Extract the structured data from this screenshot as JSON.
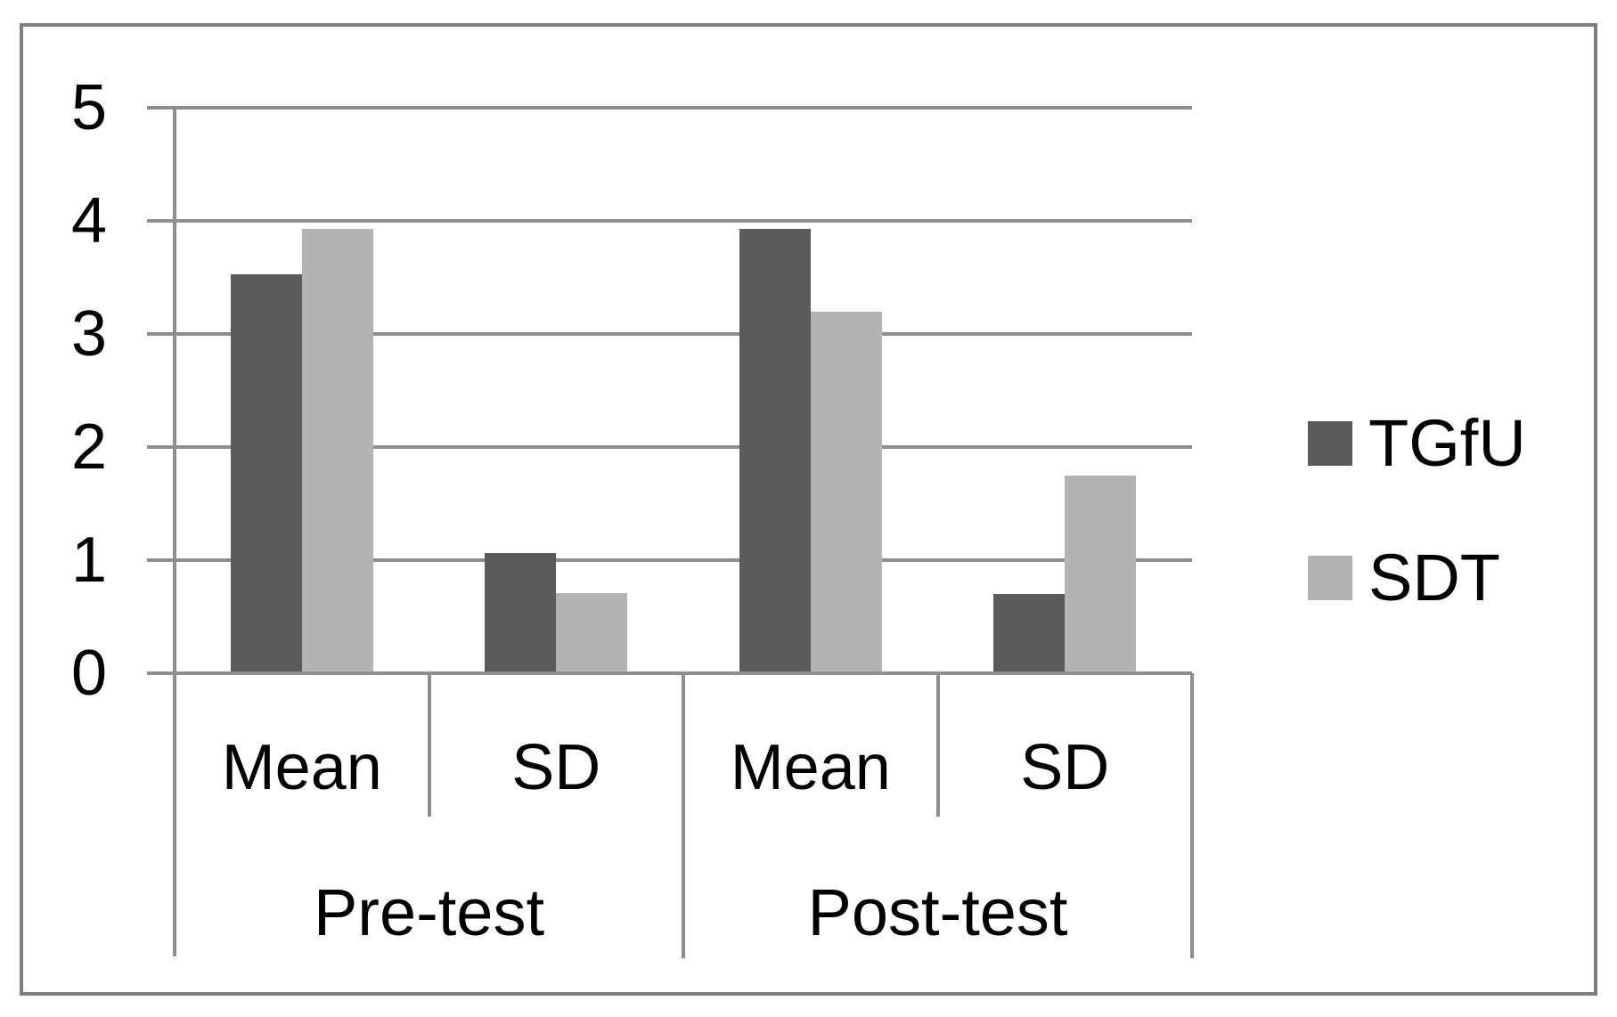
{
  "figure": {
    "background_color": "#ffffff",
    "border_color": "#7f7f7f",
    "text_color": "#000000"
  },
  "chart_data": {
    "type": "bar",
    "title": "",
    "xlabel": "",
    "ylabel": "",
    "grid": "horizontal",
    "grid_color": "#8e8e8e",
    "axis_color": "#8e8e8e",
    "ylim": [
      0,
      5
    ],
    "yticks": [
      0,
      1,
      2,
      3,
      4,
      5
    ],
    "ytick_labels": [
      "0",
      "1",
      "2",
      "3",
      "4",
      "5"
    ],
    "groups": [
      {
        "label": "Pre-test",
        "subcategories": [
          "Mean",
          "SD"
        ]
      },
      {
        "label": "Post-test",
        "subcategories": [
          "Mean",
          "SD"
        ]
      }
    ],
    "categories": [
      "Pre-test Mean",
      "Pre-test SD",
      "Post-test Mean",
      "Post-test SD"
    ],
    "series": [
      {
        "name": "TGfU",
        "color": "#5b5b5b",
        "values": [
          3.53,
          1.06,
          3.93,
          0.7
        ]
      },
      {
        "name": "SDT",
        "color": "#b3b3b3",
        "values": [
          3.93,
          0.71,
          3.2,
          1.75
        ]
      }
    ],
    "legend_position": "right"
  },
  "legend": {
    "items": [
      {
        "label": "TGfU",
        "color": "#5b5b5b"
      },
      {
        "label": "SDT",
        "color": "#b3b3b3"
      }
    ]
  }
}
